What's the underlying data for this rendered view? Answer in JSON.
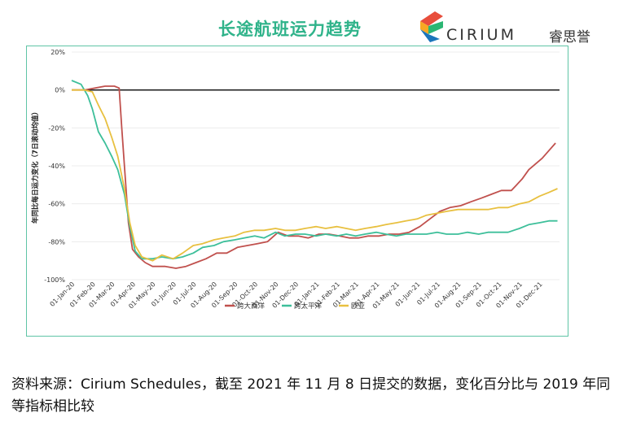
{
  "header": {
    "title": "长途航班运力趋势",
    "logo_text": "CIRIUM",
    "logo_cn": "睿思誉"
  },
  "source_note": "资料来源：Cirium Schedules，截至 2021 年 11 月 8 日提交的数据，变化百分比与 2019 年同等指标相比较",
  "chart_data": {
    "type": "line",
    "title": "",
    "xlabel": "",
    "ylabel": "年同比每日运力变化（7日滚动均值）",
    "ylim": [
      -100,
      20
    ],
    "yticks": [
      20,
      0,
      -20,
      -40,
      -60,
      -80,
      -100
    ],
    "ytick_labels": [
      "20%",
      "0%",
      "-20%",
      "-40%",
      "-60%",
      "-80%",
      "-100%"
    ],
    "xlim": [
      "2020-01-01",
      "2021-12-31"
    ],
    "x_tick_labels": [
      "01-Jan-20",
      "01-Feb-20",
      "01-Mar-20",
      "01-Apr-20",
      "01-May-20",
      "01-Jun-20",
      "01-Jul-20",
      "01-Aug-20",
      "01-Sep-20",
      "01-Oct-20",
      "01-Nov-20",
      "01-Dec-20",
      "01-Jan-21",
      "01-Feb-21",
      "01-Mar-21",
      "01-Apr-21",
      "01-May-21",
      "01-Jun-21",
      "01-Jul-21",
      "01-Aug-21",
      "01-Sep-21",
      "01-Oct-21",
      "01-Nov-21",
      "01-Dec-21"
    ],
    "grid": "horizontal",
    "legend_position": "bottom",
    "series": [
      {
        "name": "跨大西洋",
        "color": "#c0504d",
        "points": [
          [
            "2020-01-01",
            0
          ],
          [
            "2020-01-20",
            0
          ],
          [
            "2020-02-05",
            1
          ],
          [
            "2020-02-20",
            2
          ],
          [
            "2020-03-05",
            2
          ],
          [
            "2020-03-12",
            1
          ],
          [
            "2020-03-16",
            -20
          ],
          [
            "2020-03-21",
            -45
          ],
          [
            "2020-03-26",
            -70
          ],
          [
            "2020-04-01",
            -84
          ],
          [
            "2020-04-10",
            -88
          ],
          [
            "2020-04-20",
            -91
          ],
          [
            "2020-05-01",
            -93
          ],
          [
            "2020-05-20",
            -93
          ],
          [
            "2020-06-05",
            -94
          ],
          [
            "2020-06-20",
            -93
          ],
          [
            "2020-07-05",
            -91
          ],
          [
            "2020-07-20",
            -89
          ],
          [
            "2020-08-05",
            -86
          ],
          [
            "2020-08-20",
            -86
          ],
          [
            "2020-09-05",
            -83
          ],
          [
            "2020-09-20",
            -82
          ],
          [
            "2020-10-05",
            -81
          ],
          [
            "2020-10-20",
            -80
          ],
          [
            "2020-11-05",
            -75
          ],
          [
            "2020-11-20",
            -77
          ],
          [
            "2020-12-05",
            -77
          ],
          [
            "2020-12-20",
            -78
          ],
          [
            "2021-01-05",
            -76
          ],
          [
            "2021-01-20",
            -76
          ],
          [
            "2021-02-05",
            -77
          ],
          [
            "2021-02-20",
            -78
          ],
          [
            "2021-03-05",
            -78
          ],
          [
            "2021-03-20",
            -77
          ],
          [
            "2021-04-05",
            -77
          ],
          [
            "2021-04-20",
            -76
          ],
          [
            "2021-05-05",
            -76
          ],
          [
            "2021-05-20",
            -75
          ],
          [
            "2021-06-05",
            -72
          ],
          [
            "2021-06-20",
            -68
          ],
          [
            "2021-07-05",
            -64
          ],
          [
            "2021-07-20",
            -62
          ],
          [
            "2021-08-05",
            -61
          ],
          [
            "2021-08-20",
            -59
          ],
          [
            "2021-09-05",
            -57
          ],
          [
            "2021-09-20",
            -55
          ],
          [
            "2021-10-05",
            -53
          ],
          [
            "2021-10-20",
            -53
          ],
          [
            "2021-11-05",
            -47
          ],
          [
            "2021-11-15",
            -42
          ],
          [
            "2021-11-25",
            -39
          ],
          [
            "2021-12-05",
            -36
          ],
          [
            "2021-12-15",
            -32
          ],
          [
            "2021-12-25",
            -28
          ]
        ]
      },
      {
        "name": "跨太平洋",
        "color": "#3dbf9a",
        "points": [
          [
            "2020-01-01",
            5
          ],
          [
            "2020-01-15",
            3
          ],
          [
            "2020-01-25",
            -3
          ],
          [
            "2020-02-01",
            -10
          ],
          [
            "2020-02-10",
            -22
          ],
          [
            "2020-02-20",
            -28
          ],
          [
            "2020-03-01",
            -35
          ],
          [
            "2020-03-10",
            -42
          ],
          [
            "2020-03-20",
            -55
          ],
          [
            "2020-03-28",
            -72
          ],
          [
            "2020-04-05",
            -85
          ],
          [
            "2020-04-15",
            -89
          ],
          [
            "2020-05-01",
            -89
          ],
          [
            "2020-05-15",
            -88
          ],
          [
            "2020-06-01",
            -89
          ],
          [
            "2020-06-15",
            -88
          ],
          [
            "2020-07-01",
            -86
          ],
          [
            "2020-07-15",
            -83
          ],
          [
            "2020-08-01",
            -82
          ],
          [
            "2020-08-15",
            -80
          ],
          [
            "2020-09-01",
            -79
          ],
          [
            "2020-09-15",
            -78
          ],
          [
            "2020-10-01",
            -77
          ],
          [
            "2020-10-15",
            -78
          ],
          [
            "2020-11-01",
            -75
          ],
          [
            "2020-11-15",
            -77
          ],
          [
            "2020-12-01",
            -76
          ],
          [
            "2020-12-15",
            -76
          ],
          [
            "2021-01-01",
            -77
          ],
          [
            "2021-01-15",
            -76
          ],
          [
            "2021-02-01",
            -77
          ],
          [
            "2021-02-15",
            -76
          ],
          [
            "2021-03-01",
            -77
          ],
          [
            "2021-03-15",
            -76
          ],
          [
            "2021-04-01",
            -75
          ],
          [
            "2021-04-15",
            -76
          ],
          [
            "2021-05-01",
            -77
          ],
          [
            "2021-05-15",
            -76
          ],
          [
            "2021-06-01",
            -76
          ],
          [
            "2021-06-15",
            -76
          ],
          [
            "2021-07-01",
            -75
          ],
          [
            "2021-07-15",
            -76
          ],
          [
            "2021-08-01",
            -76
          ],
          [
            "2021-08-15",
            -75
          ],
          [
            "2021-09-01",
            -76
          ],
          [
            "2021-09-15",
            -75
          ],
          [
            "2021-10-01",
            -75
          ],
          [
            "2021-10-15",
            -75
          ],
          [
            "2021-11-01",
            -73
          ],
          [
            "2021-11-15",
            -71
          ],
          [
            "2021-12-01",
            -70
          ],
          [
            "2021-12-15",
            -69
          ],
          [
            "2021-12-28",
            -69
          ]
        ]
      },
      {
        "name": "欧亚",
        "color": "#e8c040",
        "points": [
          [
            "2020-01-01",
            0
          ],
          [
            "2020-01-20",
            0
          ],
          [
            "2020-02-01",
            -1
          ],
          [
            "2020-02-10",
            -8
          ],
          [
            "2020-02-20",
            -15
          ],
          [
            "2020-03-01",
            -25
          ],
          [
            "2020-03-10",
            -35
          ],
          [
            "2020-03-20",
            -52
          ],
          [
            "2020-03-28",
            -70
          ],
          [
            "2020-04-05",
            -82
          ],
          [
            "2020-04-15",
            -88
          ],
          [
            "2020-05-01",
            -90
          ],
          [
            "2020-05-15",
            -87
          ],
          [
            "2020-06-01",
            -89
          ],
          [
            "2020-06-15",
            -86
          ],
          [
            "2020-07-01",
            -82
          ],
          [
            "2020-07-15",
            -81
          ],
          [
            "2020-08-01",
            -79
          ],
          [
            "2020-08-15",
            -78
          ],
          [
            "2020-09-01",
            -77
          ],
          [
            "2020-09-15",
            -75
          ],
          [
            "2020-10-01",
            -74
          ],
          [
            "2020-10-15",
            -74
          ],
          [
            "2020-11-01",
            -73
          ],
          [
            "2020-11-15",
            -74
          ],
          [
            "2020-12-01",
            -74
          ],
          [
            "2020-12-15",
            -73
          ],
          [
            "2021-01-01",
            -72
          ],
          [
            "2021-01-15",
            -73
          ],
          [
            "2021-02-01",
            -72
          ],
          [
            "2021-02-15",
            -73
          ],
          [
            "2021-03-01",
            -74
          ],
          [
            "2021-03-15",
            -73
          ],
          [
            "2021-04-01",
            -72
          ],
          [
            "2021-04-15",
            -71
          ],
          [
            "2021-05-01",
            -70
          ],
          [
            "2021-05-15",
            -69
          ],
          [
            "2021-06-01",
            -68
          ],
          [
            "2021-06-15",
            -66
          ],
          [
            "2021-07-01",
            -65
          ],
          [
            "2021-07-15",
            -64
          ],
          [
            "2021-08-01",
            -63
          ],
          [
            "2021-08-15",
            -63
          ],
          [
            "2021-09-01",
            -63
          ],
          [
            "2021-09-15",
            -63
          ],
          [
            "2021-10-01",
            -62
          ],
          [
            "2021-10-15",
            -62
          ],
          [
            "2021-11-01",
            -60
          ],
          [
            "2021-11-15",
            -59
          ],
          [
            "2021-12-01",
            -56
          ],
          [
            "2021-12-15",
            -54
          ],
          [
            "2021-12-28",
            -52
          ]
        ]
      }
    ]
  }
}
